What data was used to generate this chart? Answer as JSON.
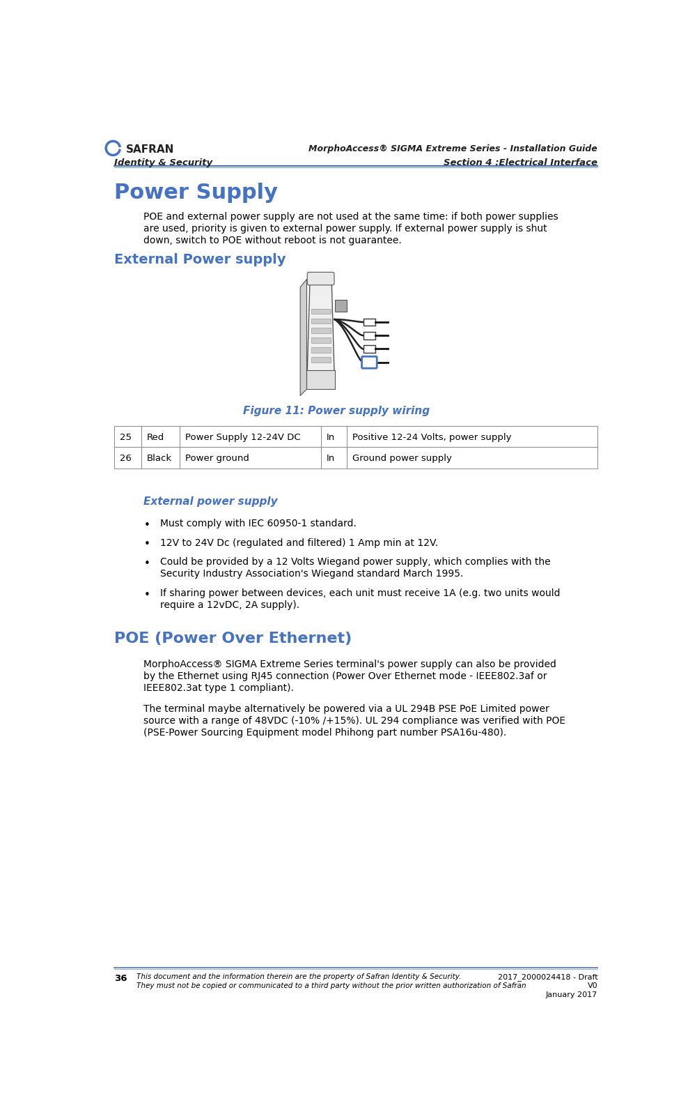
{
  "page_width": 9.88,
  "page_height": 16.06,
  "bg_color": "#ffffff",
  "header_title_right": "MorphoAccess® SIGMA Extreme Series - Installation Guide",
  "header_subtitle_left": "Identity & Security",
  "header_subtitle_right": "Section 4 :Electrical Interface",
  "header_line_color": "#4472C4",
  "main_title": "Power Supply",
  "main_title_color": "#4472C4",
  "section1_title": "External Power supply",
  "section1_title_color": "#4472C4",
  "figure_caption": "Figure 11: Power supply wiring",
  "figure_caption_color": "#4472C4",
  "table_rows": [
    [
      "25",
      "Red",
      "Power Supply 12-24V DC",
      "In",
      "Positive 12-24 Volts, power supply"
    ],
    [
      "26",
      "Black",
      "Power ground",
      "In",
      "Ground power supply"
    ]
  ],
  "subsection_title": "External power supply",
  "subsection_title_color": "#4472C4",
  "bullet_points": [
    "Must comply with IEC 60950-1 standard.",
    "12V to 24V Dc (regulated and filtered) 1 Amp min at 12V.",
    "Could be provided by a 12 Volts Wiegand power supply, which complies with the\nSecurity Industry Association's Wiegand standard March 1995.",
    "If sharing power between devices, each unit must receive 1A (e.g. two units would\nrequire a 12vDC, 2A supply)."
  ],
  "section2_title": "POE (Power Over Ethernet)",
  "section2_title_color": "#4472C4",
  "para1_lines": [
    "MorphoAccess® SIGMA Extreme Series terminal's power supply can also be provided",
    "by the Ethernet using RJ45 connection (Power Over Ethernet mode - IEEE802.3af or",
    "IEEE802.3at type 1 compliant)."
  ],
  "para2_lines": [
    "The terminal maybe alternatively be powered via a UL 294B PSE PoE Limited power",
    "source with a range of 48VDC (-10% /+15%). UL 294 compliance was verified with POE",
    "(PSE-Power Sourcing Equipment model Phihong part number PSA16u-480)."
  ],
  "footer_left_num": "36",
  "footer_left_text1": "This document and the information therein are the property of Safran Identity & Security.",
  "footer_left_text2": "They must not be copied or communicated to a third party without the prior written authorization of Safran",
  "footer_right_line1": "2017_2000024418 - Draft",
  "footer_right_line2": "V0",
  "footer_right_line3": "January 2017",
  "footer_line_color": "#4472C4",
  "safran_blue": "#4472C4",
  "text_color": "#000000",
  "table_border_color": "#888888",
  "col_widths_ratio": [
    0.3,
    0.42,
    1.55,
    0.28,
    2.75
  ]
}
